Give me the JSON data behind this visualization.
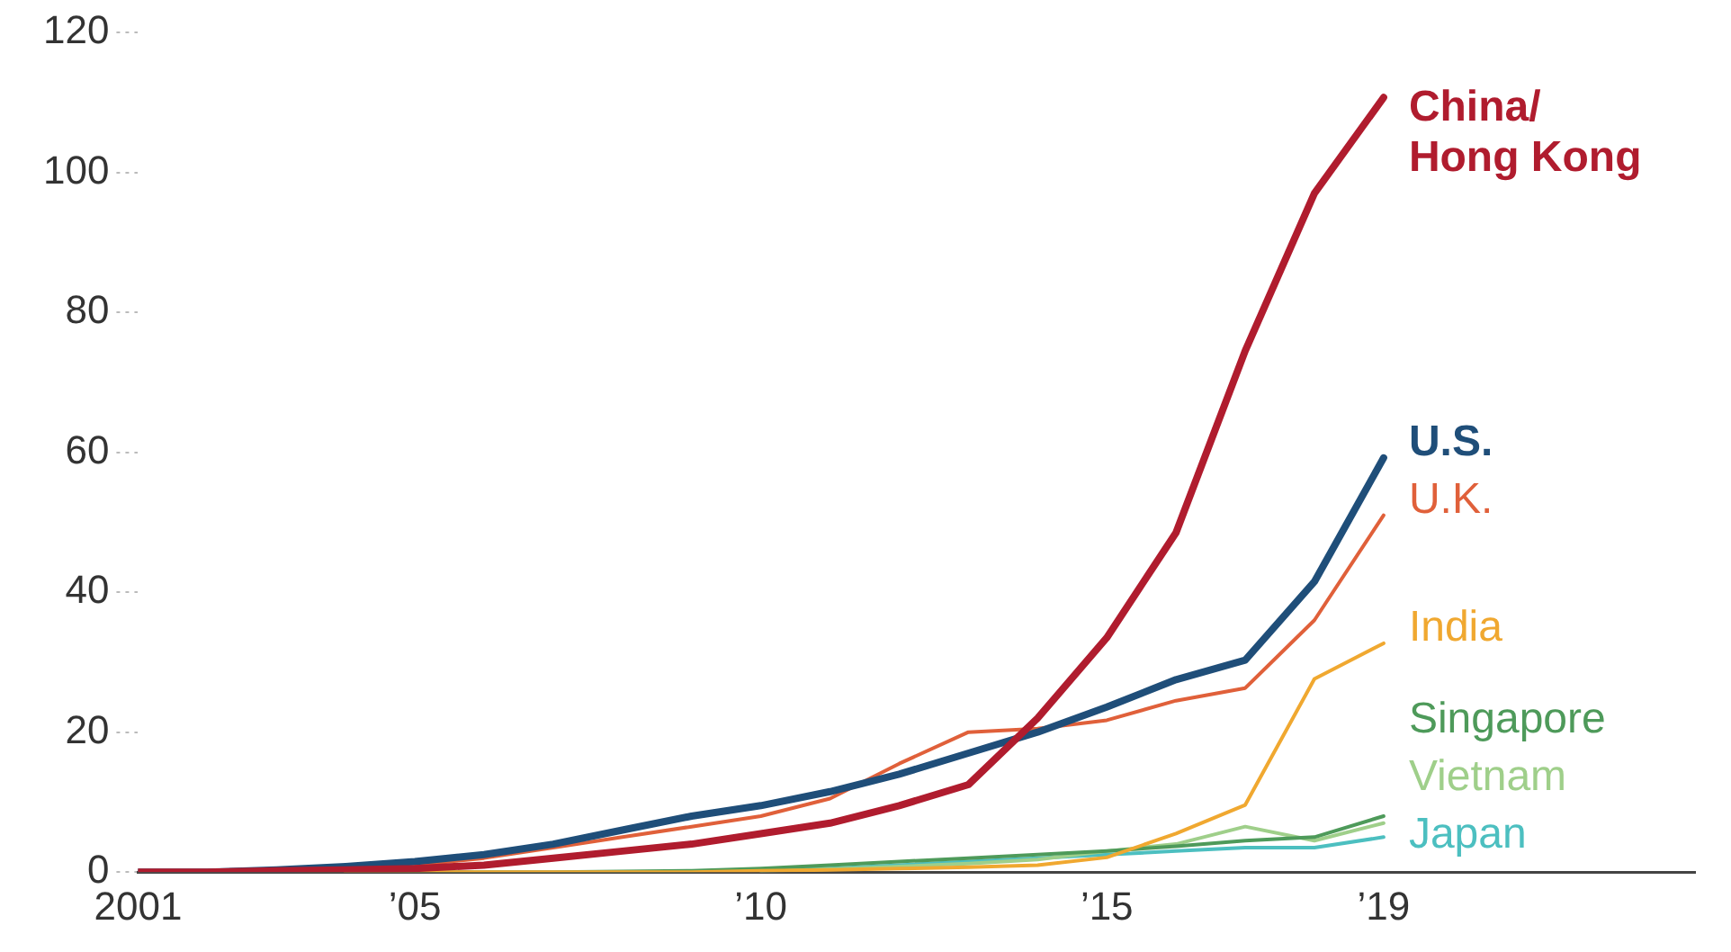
{
  "chart_data": {
    "type": "line",
    "x": [
      2001,
      2002,
      2003,
      2004,
      2005,
      2006,
      2007,
      2008,
      2009,
      2010,
      2011,
      2012,
      2013,
      2014,
      2015,
      2016,
      2017,
      2018,
      2019
    ],
    "series": [
      {
        "name": "China/\nHong Kong",
        "color": "#b01c2e",
        "values": [
          0,
          0,
          0.2,
          0.3,
          0.5,
          1,
          2,
          3,
          4,
          5.5,
          7,
          9.5,
          12.5,
          22,
          33.5,
          48.5,
          74.5,
          97,
          110.7
        ]
      },
      {
        "name": "U.S.",
        "color": "#1f4e79",
        "values": [
          0,
          0,
          0.3,
          0.8,
          1.5,
          2.5,
          4,
          6,
          8,
          9.5,
          11.5,
          14,
          17,
          20,
          23.6,
          27.5,
          30.3,
          41.5,
          59.2
        ]
      },
      {
        "name": "U.K.",
        "color": "#e0603a",
        "values": [
          null,
          null,
          null,
          0.5,
          1,
          2,
          3.5,
          5,
          6.5,
          8,
          10.5,
          15.5,
          20,
          20.5,
          21.7,
          24.5,
          26.3,
          36,
          51
        ]
      },
      {
        "name": "India",
        "color": "#f0a830",
        "values": [
          null,
          null,
          null,
          0,
          0,
          0,
          0,
          0,
          0,
          0.2,
          0.3,
          0.5,
          0.7,
          1,
          2.1,
          5.5,
          9.6,
          27.6,
          32.7
        ]
      },
      {
        "name": "Singapore",
        "color": "#4e9a5a",
        "values": [
          0,
          0,
          0,
          0,
          0,
          0,
          0,
          0.1,
          0.2,
          0.5,
          1,
          1.5,
          2,
          2.5,
          3,
          3.7,
          4.5,
          5,
          8
        ]
      },
      {
        "name": "Vietnam",
        "color": "#9fcf8a",
        "values": [
          null,
          null,
          null,
          null,
          null,
          null,
          null,
          null,
          null,
          0.2,
          0.4,
          0.8,
          1.2,
          1.8,
          3,
          4,
          6.5,
          4.5,
          7
        ]
      },
      {
        "name": "Japan",
        "color": "#4cbfc0",
        "values": [
          null,
          null,
          null,
          null,
          null,
          null,
          null,
          null,
          null,
          0.2,
          0.5,
          1,
          1.5,
          2,
          2.5,
          3,
          3.5,
          3.5,
          5
        ]
      }
    ],
    "xlim": [
      2001,
      2023.5
    ],
    "xticks": [
      2001,
      {
        "value": 2005,
        "label": "’05"
      },
      {
        "value": 2010,
        "label": "’10"
      },
      {
        "value": 2015,
        "label": "’15"
      },
      {
        "value": 2019,
        "label": "’19"
      }
    ],
    "ylim": [
      0,
      120
    ],
    "yticks": [
      0,
      20,
      40,
      60,
      80,
      100,
      120
    ],
    "grid": false,
    "legend": false,
    "marker": "none",
    "line_style": "solid"
  }
}
